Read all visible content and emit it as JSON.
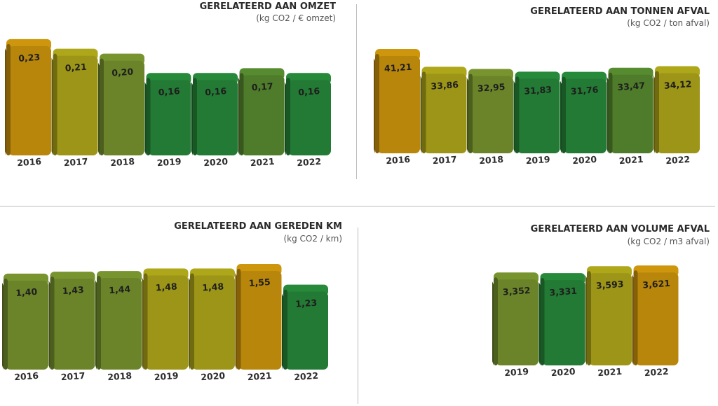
{
  "colors": {
    "orange": "#B8860B",
    "yellow": "#9C9517",
    "olive": "#6B842A",
    "mid": "#4E7C2A",
    "green": "#237A34"
  },
  "chart_data": [
    {
      "type": "bar",
      "title": "GERELATEERD AAN OMZET",
      "subtitle": "(kg CO2 / € omzet)",
      "categories": [
        "2016",
        "2017",
        "2018",
        "2019",
        "2020",
        "2021",
        "2022"
      ],
      "values": [
        0.23,
        0.21,
        0.2,
        0.16,
        0.16,
        0.17,
        0.16
      ],
      "labels": [
        "0,23",
        "0,21",
        "0,20",
        "0,16",
        "0,16",
        "0,17",
        "0,16"
      ],
      "colors": [
        "orange",
        "yellow",
        "olive",
        "green",
        "green",
        "mid",
        "green"
      ],
      "ylim": [
        0,
        0.25
      ]
    },
    {
      "type": "bar",
      "title": "GERELATEERD AAN TONNEN AFVAL",
      "subtitle": "(kg CO2 / ton afval)",
      "categories": [
        "2016",
        "2017",
        "2018",
        "2019",
        "2020",
        "2021",
        "2022"
      ],
      "values": [
        41.21,
        33.86,
        32.95,
        31.83,
        31.76,
        33.47,
        34.12
      ],
      "labels": [
        "41,21",
        "33,86",
        "32,95",
        "31,83",
        "31,76",
        "33,47",
        "34,12"
      ],
      "colors": [
        "orange",
        "yellow",
        "olive",
        "green",
        "green",
        "mid",
        "yellow"
      ],
      "ylim": [
        0,
        45
      ]
    },
    {
      "type": "bar",
      "title": "GERELATEERD AAN GEREDEN KM",
      "subtitle": "(kg CO2 / km)",
      "categories": [
        "2016",
        "2017",
        "2018",
        "2019",
        "2020",
        "2021",
        "2022"
      ],
      "values": [
        1.4,
        1.43,
        1.44,
        1.48,
        1.48,
        1.55,
        1.23
      ],
      "labels": [
        "1,40",
        "1,43",
        "1,44",
        "1,48",
        "1,48",
        "1,55",
        "1,23"
      ],
      "colors": [
        "olive",
        "olive",
        "olive",
        "yellow",
        "yellow",
        "orange",
        "green"
      ],
      "ylim": [
        0,
        1.7
      ]
    },
    {
      "type": "bar",
      "title": "GERELATEERD AAN VOLUME AFVAL",
      "subtitle": "(kg CO2 / m3 afval)",
      "categories": [
        "2019",
        "2020",
        "2021",
        "2022"
      ],
      "values": [
        3.352,
        3.331,
        3.593,
        3.621
      ],
      "labels": [
        "3,352",
        "3,331",
        "3,593",
        "3,621"
      ],
      "colors": [
        "olive",
        "green",
        "yellow",
        "orange"
      ],
      "ylim": [
        0,
        4
      ]
    }
  ]
}
